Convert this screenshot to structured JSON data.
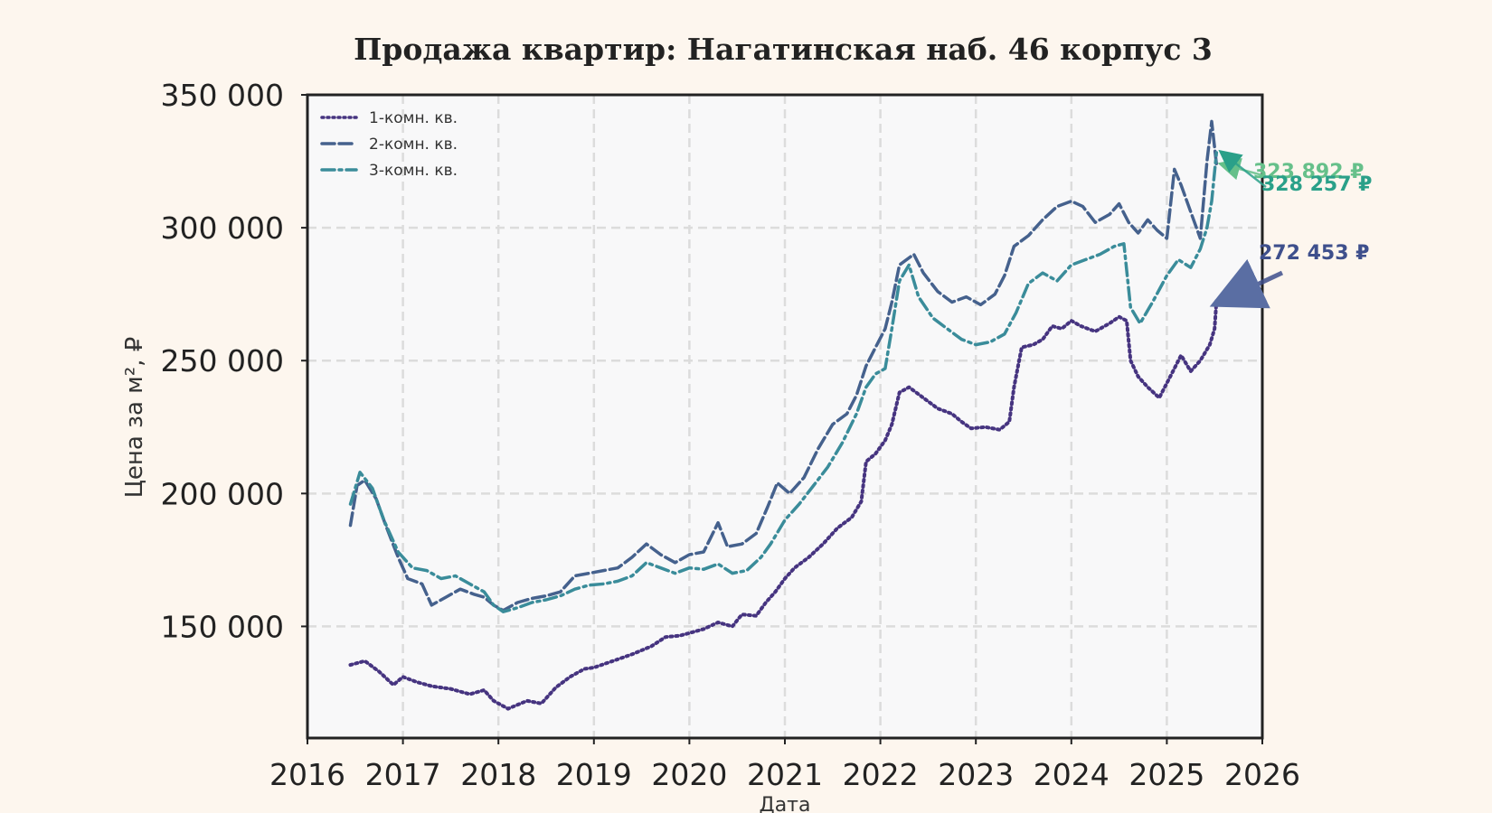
{
  "chart_data": {
    "type": "line",
    "title": "Продажа квартир: Нагатинская наб. 46 корпус 3",
    "xlabel": "Дата",
    "ylabel": "Цена за м², ₽",
    "xlim": [
      2016,
      2026
    ],
    "ylim": [
      108000,
      350000
    ],
    "x_ticks": [
      "2016",
      "2017",
      "2018",
      "2019",
      "2020",
      "2021",
      "2022",
      "2023",
      "2024",
      "2025",
      "2026"
    ],
    "y_ticks": [
      "150 000",
      "200 000",
      "250 000",
      "300 000",
      "350 000"
    ],
    "grid": true,
    "legend_position": "top-left",
    "series": [
      {
        "name": "1-комн. кв.",
        "color": "#463480",
        "style": "dotted",
        "end_label": "272 453 ₽",
        "points": [
          [
            2016.45,
            135500
          ],
          [
            2016.6,
            137000
          ],
          [
            2016.75,
            133000
          ],
          [
            2016.9,
            128000
          ],
          [
            2017.0,
            131000
          ],
          [
            2017.15,
            129000
          ],
          [
            2017.3,
            127500
          ],
          [
            2017.5,
            126500
          ],
          [
            2017.7,
            124500
          ],
          [
            2017.85,
            126000
          ],
          [
            2017.95,
            122000
          ],
          [
            2018.1,
            119000
          ],
          [
            2018.3,
            122000
          ],
          [
            2018.45,
            121000
          ],
          [
            2018.6,
            127000
          ],
          [
            2018.75,
            131000
          ],
          [
            2018.9,
            134000
          ],
          [
            2019.0,
            134500
          ],
          [
            2019.2,
            137000
          ],
          [
            2019.4,
            139500
          ],
          [
            2019.6,
            142500
          ],
          [
            2019.75,
            146000
          ],
          [
            2019.9,
            146500
          ],
          [
            2020.05,
            148000
          ],
          [
            2020.15,
            149000
          ],
          [
            2020.3,
            151500
          ],
          [
            2020.45,
            150000
          ],
          [
            2020.55,
            154500
          ],
          [
            2020.7,
            154000
          ],
          [
            2020.8,
            159000
          ],
          [
            2020.9,
            163000
          ],
          [
            2021.0,
            168000
          ],
          [
            2021.1,
            172000
          ],
          [
            2021.25,
            176000
          ],
          [
            2021.4,
            181000
          ],
          [
            2021.55,
            187000
          ],
          [
            2021.7,
            191000
          ],
          [
            2021.8,
            197000
          ],
          [
            2021.85,
            212000
          ],
          [
            2021.95,
            215000
          ],
          [
            2022.05,
            220000
          ],
          [
            2022.12,
            226000
          ],
          [
            2022.2,
            238000
          ],
          [
            2022.3,
            240000
          ],
          [
            2022.45,
            236000
          ],
          [
            2022.6,
            232000
          ],
          [
            2022.75,
            230000
          ],
          [
            2022.85,
            227000
          ],
          [
            2022.95,
            224500
          ],
          [
            2023.1,
            225000
          ],
          [
            2023.25,
            224000
          ],
          [
            2023.35,
            227000
          ],
          [
            2023.4,
            240000
          ],
          [
            2023.48,
            255000
          ],
          [
            2023.6,
            256000
          ],
          [
            2023.7,
            258000
          ],
          [
            2023.8,
            263000
          ],
          [
            2023.9,
            262000
          ],
          [
            2024.0,
            265000
          ],
          [
            2024.1,
            263000
          ],
          [
            2024.25,
            261000
          ],
          [
            2024.4,
            264000
          ],
          [
            2024.5,
            266500
          ],
          [
            2024.58,
            265000
          ],
          [
            2024.62,
            250000
          ],
          [
            2024.7,
            244000
          ],
          [
            2024.8,
            240000
          ],
          [
            2024.92,
            236000
          ],
          [
            2025.05,
            245000
          ],
          [
            2025.15,
            252000
          ],
          [
            2025.25,
            246000
          ],
          [
            2025.35,
            250000
          ],
          [
            2025.45,
            256000
          ],
          [
            2025.5,
            262000
          ],
          [
            2025.52,
            272453
          ]
        ]
      },
      {
        "name": "2-комн. кв.",
        "color": "#45618d",
        "style": "dashed",
        "end_label": "323 892 ₽",
        "points": [
          [
            2016.45,
            188000
          ],
          [
            2016.52,
            203000
          ],
          [
            2016.6,
            205000
          ],
          [
            2016.72,
            198000
          ],
          [
            2016.82,
            188000
          ],
          [
            2016.95,
            176000
          ],
          [
            2017.05,
            168000
          ],
          [
            2017.2,
            166000
          ],
          [
            2017.3,
            158000
          ],
          [
            2017.45,
            161000
          ],
          [
            2017.6,
            164000
          ],
          [
            2017.75,
            162000
          ],
          [
            2017.85,
            161000
          ],
          [
            2017.95,
            158000
          ],
          [
            2018.05,
            156000
          ],
          [
            2018.2,
            159000
          ],
          [
            2018.35,
            160500
          ],
          [
            2018.5,
            161500
          ],
          [
            2018.65,
            163000
          ],
          [
            2018.8,
            169000
          ],
          [
            2018.95,
            170000
          ],
          [
            2019.1,
            171000
          ],
          [
            2019.25,
            172000
          ],
          [
            2019.4,
            176000
          ],
          [
            2019.55,
            181000
          ],
          [
            2019.7,
            177000
          ],
          [
            2019.85,
            174000
          ],
          [
            2020.0,
            177000
          ],
          [
            2020.15,
            178000
          ],
          [
            2020.3,
            189000
          ],
          [
            2020.4,
            180000
          ],
          [
            2020.55,
            181000
          ],
          [
            2020.7,
            185000
          ],
          [
            2020.82,
            195000
          ],
          [
            2020.92,
            204000
          ],
          [
            2021.05,
            200000
          ],
          [
            2021.2,
            206000
          ],
          [
            2021.35,
            217000
          ],
          [
            2021.5,
            226000
          ],
          [
            2021.65,
            230000
          ],
          [
            2021.75,
            237000
          ],
          [
            2021.85,
            248000
          ],
          [
            2021.95,
            255000
          ],
          [
            2022.05,
            262000
          ],
          [
            2022.12,
            272000
          ],
          [
            2022.2,
            286000
          ],
          [
            2022.35,
            290000
          ],
          [
            2022.45,
            283000
          ],
          [
            2022.6,
            276000
          ],
          [
            2022.75,
            272000
          ],
          [
            2022.9,
            274000
          ],
          [
            2023.05,
            271000
          ],
          [
            2023.2,
            275000
          ],
          [
            2023.3,
            282000
          ],
          [
            2023.4,
            293000
          ],
          [
            2023.55,
            297000
          ],
          [
            2023.7,
            303000
          ],
          [
            2023.85,
            308000
          ],
          [
            2024.0,
            310000
          ],
          [
            2024.12,
            308000
          ],
          [
            2024.25,
            302000
          ],
          [
            2024.4,
            305000
          ],
          [
            2024.5,
            309000
          ],
          [
            2024.6,
            302000
          ],
          [
            2024.7,
            298000
          ],
          [
            2024.8,
            303000
          ],
          [
            2024.9,
            299000
          ],
          [
            2025.0,
            296000
          ],
          [
            2025.08,
            322000
          ],
          [
            2025.15,
            316000
          ],
          [
            2025.25,
            306000
          ],
          [
            2025.35,
            296000
          ],
          [
            2025.42,
            325000
          ],
          [
            2025.47,
            340000
          ],
          [
            2025.52,
            323892
          ]
        ]
      },
      {
        "name": "3-комн. кв.",
        "color": "#3a8c9a",
        "style": "dashdot",
        "end_label": "328 257 ₽",
        "points": [
          [
            2016.45,
            196000
          ],
          [
            2016.55,
            208000
          ],
          [
            2016.68,
            202000
          ],
          [
            2016.8,
            190000
          ],
          [
            2016.95,
            178000
          ],
          [
            2017.1,
            172000
          ],
          [
            2017.25,
            171000
          ],
          [
            2017.4,
            168000
          ],
          [
            2017.55,
            169000
          ],
          [
            2017.7,
            166000
          ],
          [
            2017.85,
            163000
          ],
          [
            2017.95,
            158000
          ],
          [
            2018.05,
            155500
          ],
          [
            2018.2,
            157000
          ],
          [
            2018.35,
            159000
          ],
          [
            2018.5,
            160000
          ],
          [
            2018.65,
            161500
          ],
          [
            2018.8,
            164000
          ],
          [
            2018.95,
            165500
          ],
          [
            2019.1,
            166000
          ],
          [
            2019.25,
            167000
          ],
          [
            2019.4,
            169000
          ],
          [
            2019.55,
            174000
          ],
          [
            2019.7,
            172000
          ],
          [
            2019.85,
            170000
          ],
          [
            2020.0,
            172000
          ],
          [
            2020.15,
            171500
          ],
          [
            2020.3,
            173500
          ],
          [
            2020.45,
            170000
          ],
          [
            2020.6,
            171000
          ],
          [
            2020.75,
            176000
          ],
          [
            2020.85,
            181000
          ],
          [
            2021.0,
            190000
          ],
          [
            2021.15,
            196000
          ],
          [
            2021.3,
            203000
          ],
          [
            2021.45,
            210000
          ],
          [
            2021.6,
            219000
          ],
          [
            2021.75,
            230000
          ],
          [
            2021.85,
            240000
          ],
          [
            2021.95,
            245000
          ],
          [
            2022.05,
            247000
          ],
          [
            2022.12,
            262000
          ],
          [
            2022.2,
            280000
          ],
          [
            2022.3,
            286000
          ],
          [
            2022.4,
            274000
          ],
          [
            2022.55,
            266000
          ],
          [
            2022.7,
            262000
          ],
          [
            2022.85,
            258000
          ],
          [
            2023.0,
            256000
          ],
          [
            2023.15,
            257000
          ],
          [
            2023.3,
            260000
          ],
          [
            2023.42,
            268000
          ],
          [
            2023.55,
            279000
          ],
          [
            2023.7,
            283000
          ],
          [
            2023.85,
            280000
          ],
          [
            2024.0,
            286000
          ],
          [
            2024.15,
            288000
          ],
          [
            2024.3,
            290000
          ],
          [
            2024.45,
            293000
          ],
          [
            2024.55,
            294000
          ],
          [
            2024.62,
            270000
          ],
          [
            2024.72,
            264000
          ],
          [
            2024.85,
            272000
          ],
          [
            2025.0,
            282000
          ],
          [
            2025.12,
            288000
          ],
          [
            2025.25,
            285000
          ],
          [
            2025.35,
            292000
          ],
          [
            2025.42,
            300000
          ],
          [
            2025.47,
            310000
          ],
          [
            2025.52,
            328257
          ]
        ]
      }
    ]
  }
}
